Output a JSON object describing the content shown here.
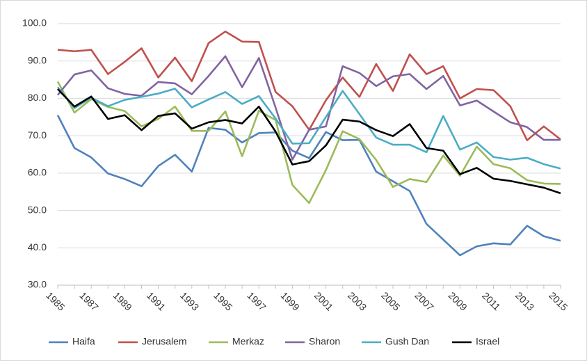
{
  "chart_data": {
    "type": "line",
    "categories": [
      1985,
      null,
      1987,
      null,
      1989,
      null,
      1991,
      null,
      1993,
      null,
      1995,
      null,
      1997,
      null,
      1999,
      null,
      2001,
      null,
      2003,
      null,
      2005,
      null,
      2007,
      null,
      2009,
      null,
      2011,
      null,
      2013,
      null,
      2015
    ],
    "series": [
      {
        "name": "Haifa",
        "color": "#4f81bd",
        "values": [
          75.5,
          66.7,
          64.2,
          59.9,
          58.4,
          56.5,
          61.9,
          64.9,
          60.4,
          72.1,
          71.6,
          68.2,
          70.7,
          70.9,
          66.0,
          64.0,
          71.0,
          68.8,
          68.9,
          60.4,
          57.8,
          55.2,
          46.4,
          42.2,
          38.0,
          40.4,
          41.2,
          40.9,
          45.9,
          43.1,
          41.9
        ]
      },
      {
        "name": "Jerusalem",
        "color": "#c0504d",
        "values": [
          93.0,
          92.6,
          93.0,
          86.5,
          89.8,
          93.4,
          85.6,
          90.9,
          84.6,
          94.8,
          97.9,
          95.2,
          95.1,
          81.7,
          77.9,
          71.6,
          79.5,
          85.6,
          80.4,
          89.2,
          82.0,
          91.8,
          86.5,
          88.6,
          80.0,
          82.5,
          82.2,
          77.9,
          68.8,
          72.5,
          69.0
        ]
      },
      {
        "name": "Merkaz",
        "color": "#9bbb59",
        "values": [
          84.5,
          76.2,
          79.8,
          77.7,
          76.6,
          72.5,
          74.5,
          77.8,
          71.3,
          71.3,
          76.5,
          64.5,
          76.7,
          74.2,
          56.8,
          52.0,
          60.8,
          71.2,
          69.1,
          63.5,
          56.3,
          58.4,
          57.6,
          64.7,
          59.3,
          67.1,
          62.4,
          61.3,
          58.1,
          57.2,
          57.1
        ]
      },
      {
        "name": "Sharon",
        "color": "#8064a2",
        "values": [
          80.9,
          86.4,
          87.5,
          82.7,
          81.2,
          80.7,
          84.4,
          84.0,
          81.1,
          86.0,
          91.3,
          83.0,
          90.8,
          77.5,
          63.6,
          71.6,
          72.5,
          88.6,
          86.8,
          83.3,
          85.9,
          86.5,
          82.5,
          86.0,
          78.1,
          79.4,
          76.5,
          73.6,
          72.3,
          68.9,
          68.9
        ]
      },
      {
        "name": "Gush Dan",
        "color": "#4bacc6",
        "values": [
          83.0,
          77.4,
          80.2,
          77.9,
          79.6,
          80.4,
          81.3,
          82.6,
          77.6,
          79.7,
          81.7,
          78.5,
          80.6,
          74.6,
          67.9,
          68.0,
          75.0,
          82.0,
          75.8,
          69.5,
          67.6,
          67.6,
          65.6,
          75.3,
          66.3,
          68.2,
          64.3,
          63.6,
          64.1,
          62.4,
          61.2
        ]
      },
      {
        "name": "Israel",
        "color": "#000000",
        "values": [
          82.5,
          77.8,
          80.5,
          74.5,
          75.5,
          71.5,
          75.3,
          76.0,
          71.9,
          73.6,
          74.2,
          73.3,
          77.8,
          71.1,
          62.3,
          63.2,
          67.4,
          74.3,
          73.8,
          71.5,
          69.9,
          73.1,
          66.7,
          66.0,
          59.7,
          61.4,
          58.5,
          57.9,
          57.0,
          56.1,
          54.6
        ]
      }
    ],
    "ylim": [
      30,
      100
    ],
    "yticks": [
      {
        "value": 30,
        "label": "30.0"
      },
      {
        "value": 40,
        "label": "40.0"
      },
      {
        "value": 50,
        "label": "50.0"
      },
      {
        "value": 60,
        "label": "60.0"
      },
      {
        "value": 70,
        "label": "70.0"
      },
      {
        "value": 80,
        "label": "80.0"
      },
      {
        "value": 90,
        "label": "90.0"
      },
      {
        "value": 100,
        "label": "100.0"
      }
    ],
    "grid": true,
    "legend": "bottom"
  }
}
